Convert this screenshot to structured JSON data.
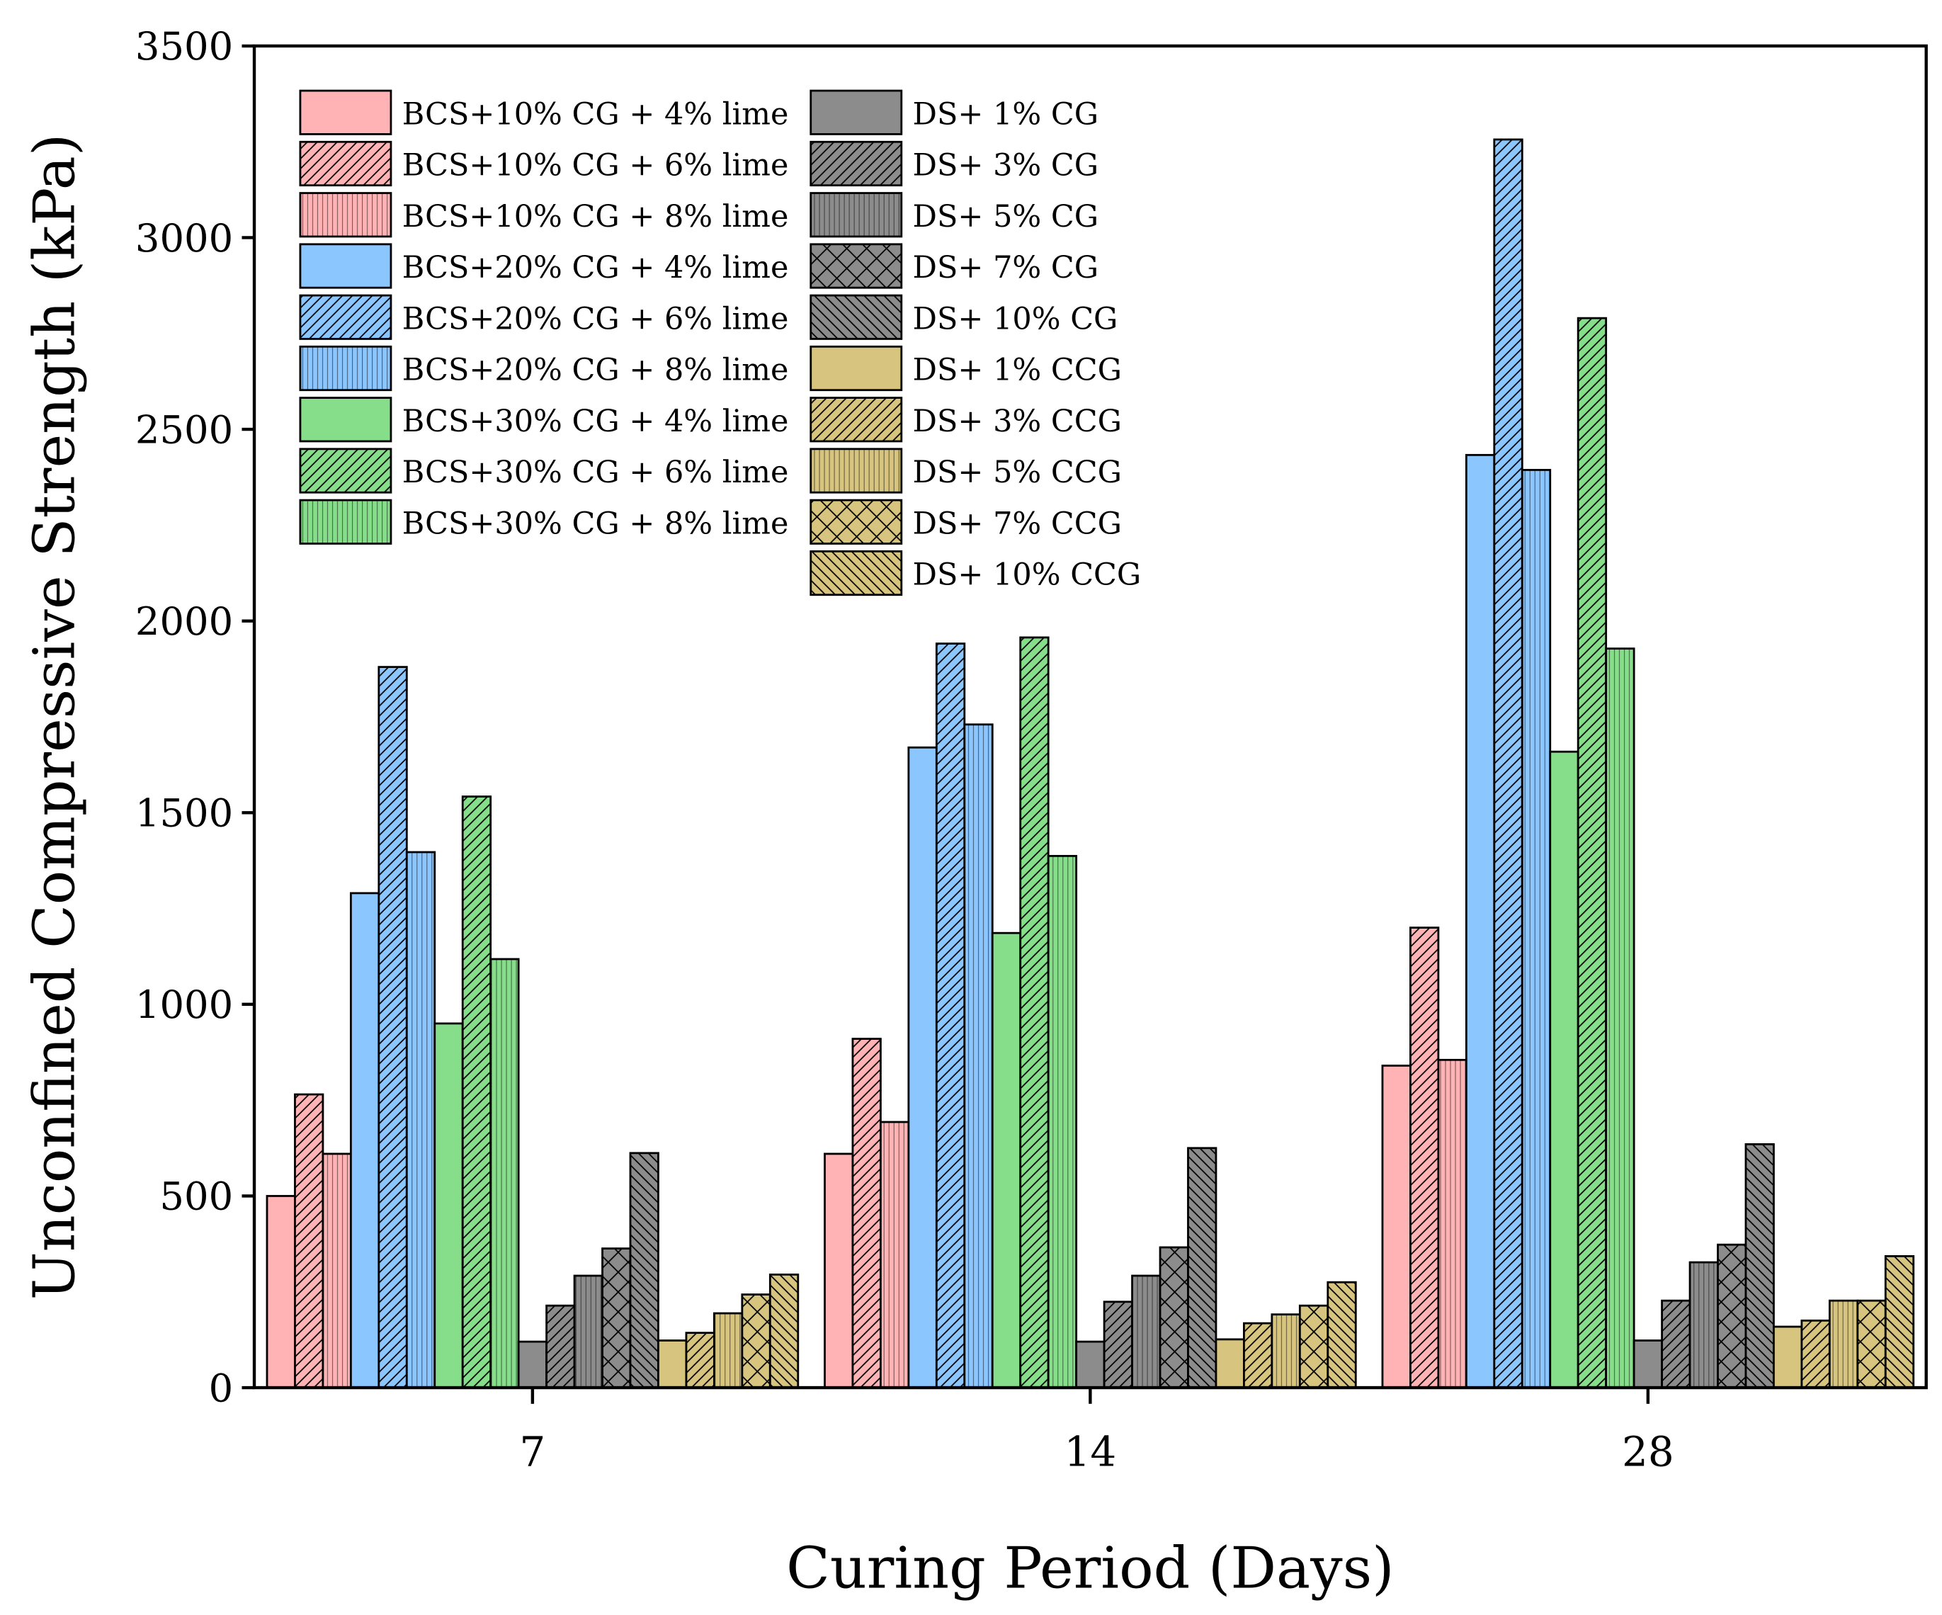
{
  "chart_data": {
    "type": "bar",
    "title": "",
    "xlabel": "Curing Period (Days)",
    "ylabel": "Unconfined Compressive Strength (kPa)",
    "ylim": [
      0,
      3500
    ],
    "yticks": [
      0,
      500,
      1000,
      1500,
      2000,
      2500,
      3000,
      3500
    ],
    "categories": [
      "7",
      "14",
      "28"
    ],
    "legend_placement": "top-left",
    "series": [
      {
        "name": "BCS+10% CG + 4% lime",
        "color": "#FFB3B5",
        "pattern": "solid",
        "values": [
          500,
          610,
          840
        ]
      },
      {
        "name": "BCS+10% CG + 6% lime",
        "color": "#FFB3B5",
        "pattern": "slash",
        "values": [
          765,
          910,
          1200
        ]
      },
      {
        "name": "BCS+10% CG + 8% lime",
        "color": "#FFB3B5",
        "pattern": "vertical",
        "values": [
          610,
          693,
          855
        ]
      },
      {
        "name": "BCS+20% CG + 4% lime",
        "color": "#8CC6FF",
        "pattern": "solid",
        "values": [
          1290,
          1670,
          2433
        ]
      },
      {
        "name": "BCS+20% CG + 6% lime",
        "color": "#8CC6FF",
        "pattern": "slash",
        "values": [
          1880,
          1941,
          3256
        ]
      },
      {
        "name": "BCS+20% CG + 8% lime",
        "color": "#8CC6FF",
        "pattern": "vertical",
        "values": [
          1397,
          1730,
          2394
        ]
      },
      {
        "name": "BCS+30% CG + 4% lime",
        "color": "#86DE8A",
        "pattern": "solid",
        "values": [
          950,
          1186,
          1659
        ]
      },
      {
        "name": "BCS+30% CG + 6% lime",
        "color": "#86DE8A",
        "pattern": "slash",
        "values": [
          1542,
          1957,
          2790
        ]
      },
      {
        "name": "BCS+30% CG + 8% lime",
        "color": "#86DE8A",
        "pattern": "vertical",
        "values": [
          1118,
          1387,
          1928
        ]
      },
      {
        "name": "DS+ 1% CG",
        "color": "#8C8C8C",
        "pattern": "solid",
        "values": [
          120,
          120,
          123
        ]
      },
      {
        "name": "DS+ 3% CG",
        "color": "#8C8C8C",
        "pattern": "slash",
        "values": [
          214,
          224,
          227
        ]
      },
      {
        "name": "DS+ 5% CG",
        "color": "#8C8C8C",
        "pattern": "vertical",
        "values": [
          292,
          292,
          327
        ]
      },
      {
        "name": "DS+ 7% CG",
        "color": "#8C8C8C",
        "pattern": "cross",
        "values": [
          363,
          366,
          373
        ]
      },
      {
        "name": "DS+ 10% CG",
        "color": "#8C8C8C",
        "pattern": "backslash",
        "values": [
          612,
          625,
          635
        ]
      },
      {
        "name": "DS+ 1% CCG",
        "color": "#D6C47F",
        "pattern": "solid",
        "values": [
          123,
          126,
          159
        ]
      },
      {
        "name": "DS+ 3% CCG",
        "color": "#D6C47F",
        "pattern": "slash",
        "values": [
          143,
          168,
          175
        ]
      },
      {
        "name": "DS+ 5% CCG",
        "color": "#D6C47F",
        "pattern": "vertical",
        "values": [
          194,
          191,
          227
        ]
      },
      {
        "name": "DS+ 7% CCG",
        "color": "#D6C47F",
        "pattern": "cross",
        "values": [
          243,
          214,
          227
        ]
      },
      {
        "name": "DS+ 10% CCG",
        "color": "#D6C47F",
        "pattern": "backslash",
        "values": [
          295,
          275,
          343
        ]
      }
    ]
  }
}
